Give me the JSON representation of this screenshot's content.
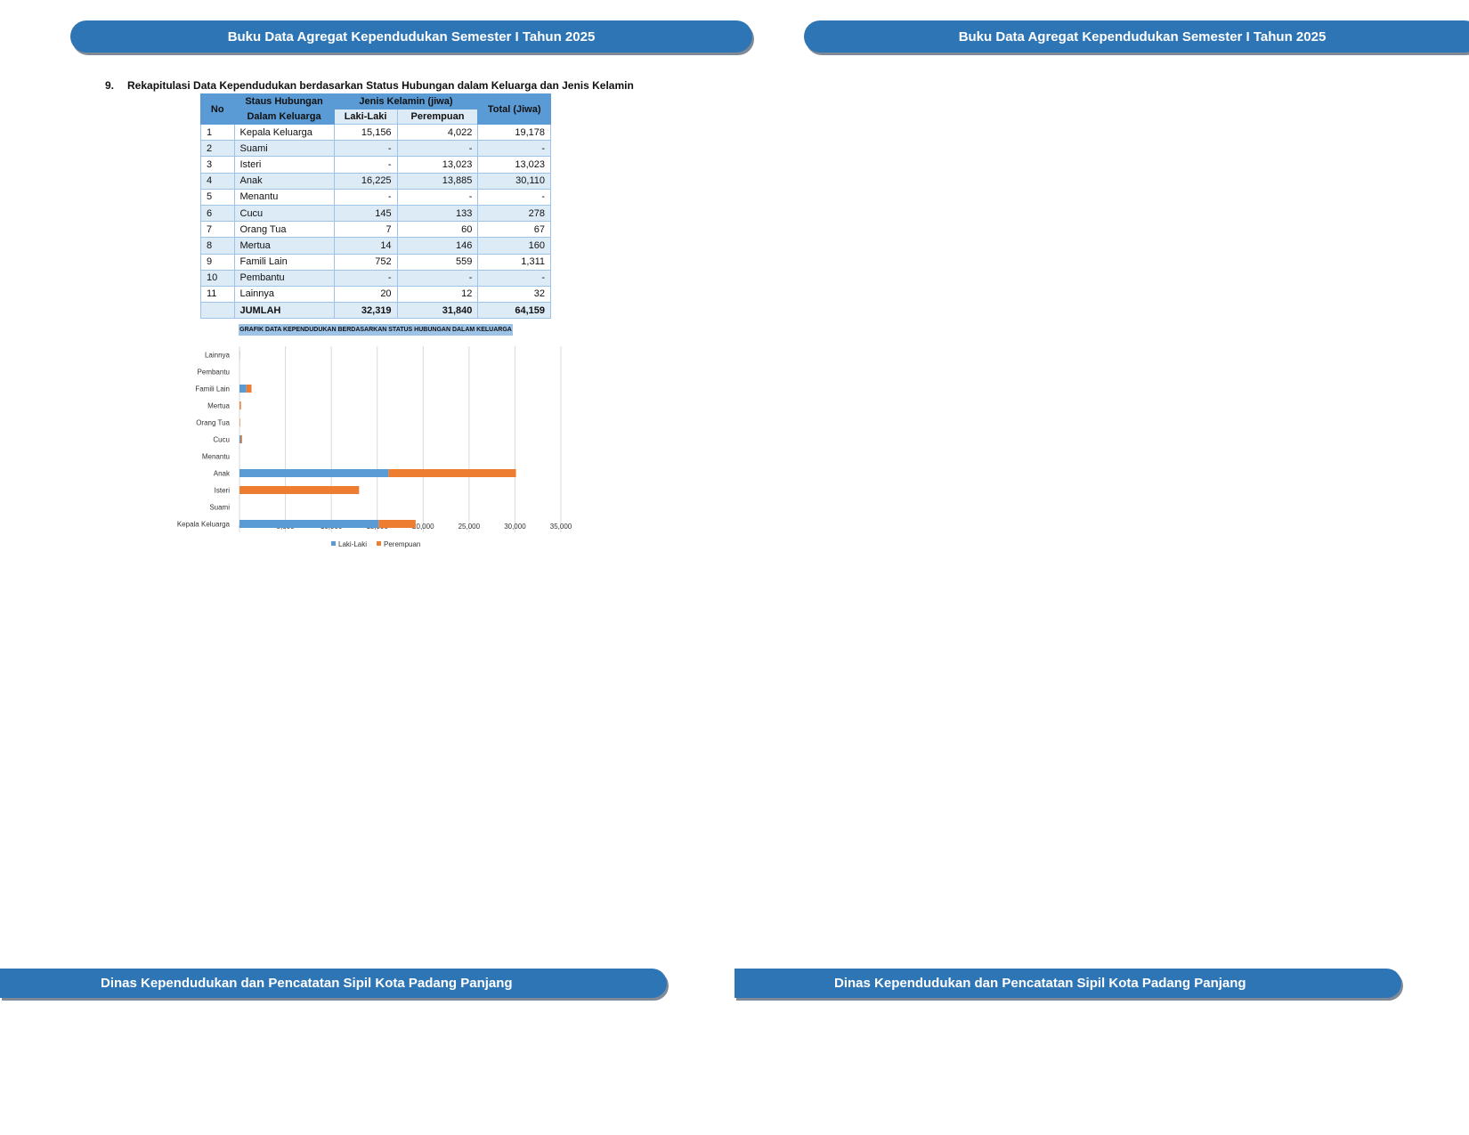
{
  "header": {
    "title_left": "Buku Data Agregat Kependudukan Semester I Tahun 2025",
    "title_right": "Buku Data Agregat Kependudukan Semester I Tahun 2025"
  },
  "footer": {
    "text_left": "Dinas Kependudukan dan Pencatatan Sipil Kota Padang Panjang",
    "text_right": "Dinas Kependudukan dan Pencatatan Sipil Kota Padang Panjang"
  },
  "section": {
    "number": "9.",
    "title": "Rekapitulasi Data Kependudukan berdasarkan Status Hubungan dalam Keluarga dan Jenis Kelamin"
  },
  "table": {
    "headers": {
      "no": "No",
      "status_1": "Staus Hubungan",
      "status_2": "Dalam Keluarga",
      "gender": "Jenis Kelamin (jiwa)",
      "male": "Laki-Laki",
      "female": "Perempuan",
      "total": "Total (Jiwa)"
    },
    "rows": [
      {
        "no": "1",
        "status": "Kepala Keluarga",
        "male": "15,156",
        "female": "4,022",
        "total": "19,178"
      },
      {
        "no": "2",
        "status": "Suami",
        "male": "-",
        "female": "-",
        "total": "-"
      },
      {
        "no": "3",
        "status": "Isteri",
        "male": "-",
        "female": "13,023",
        "total": "13,023"
      },
      {
        "no": "4",
        "status": "Anak",
        "male": "16,225",
        "female": "13,885",
        "total": "30,110"
      },
      {
        "no": "5",
        "status": "Menantu",
        "male": "-",
        "female": "-",
        "total": "-"
      },
      {
        "no": "6",
        "status": "Cucu",
        "male": "145",
        "female": "133",
        "total": "278"
      },
      {
        "no": "7",
        "status": "Orang Tua",
        "male": "7",
        "female": "60",
        "total": "67"
      },
      {
        "no": "8",
        "status": "Mertua",
        "male": "14",
        "female": "146",
        "total": "160"
      },
      {
        "no": "9",
        "status": "Famili Lain",
        "male": "752",
        "female": "559",
        "total": "1,311"
      },
      {
        "no": "10",
        "status": "Pembantu",
        "male": "-",
        "female": "-",
        "total": "-"
      },
      {
        "no": "11",
        "status": "Lainnya",
        "male": "20",
        "female": "12",
        "total": "32"
      }
    ],
    "total_row": {
      "label": "JUMLAH",
      "male": "32,319",
      "female": "31,840",
      "total": "64,159"
    }
  },
  "chart_data": {
    "type": "bar",
    "orientation": "horizontal",
    "stacked": true,
    "title": "GRAFIK DATA KEPENDUDUKAN BERDASARKAN STATUS HUBUNGAN DALAM KELUARGA",
    "categories": [
      "Kepala Keluarga",
      "Suami",
      "Isteri",
      "Anak",
      "Menantu",
      "Cucu",
      "Orang Tua",
      "Mertua",
      "Famili Lain",
      "Pembantu",
      "Lainnya"
    ],
    "series": [
      {
        "name": "Laki-Laki",
        "color": "#5B9BD5",
        "values": [
          15156,
          0,
          0,
          16225,
          0,
          145,
          7,
          14,
          752,
          0,
          20
        ]
      },
      {
        "name": "Perempuan",
        "color": "#ED7D31",
        "values": [
          4022,
          0,
          13023,
          13885,
          0,
          133,
          60,
          146,
          559,
          0,
          12
        ]
      }
    ],
    "xlim": [
      0,
      35000
    ],
    "xticks": [
      "-",
      "5,000",
      "10,000",
      "15,000",
      "20,000",
      "25,000",
      "30,000",
      "35,000"
    ],
    "grid": true,
    "legend": "bottom"
  },
  "colors": {
    "banner": "#2E75B6",
    "table_header": "#5B9BD5",
    "row_alt": "#DDEBF7"
  }
}
